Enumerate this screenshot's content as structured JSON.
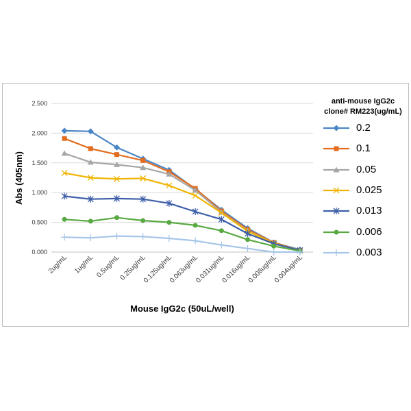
{
  "chart_data": {
    "type": "line",
    "categories": [
      "2ug/mL",
      "1ug/mL",
      "0.5ug/mL",
      "0.25ug/mL",
      "0.125ug/mL",
      "0.063ug/mL",
      "0.031ug/mL",
      "0.016ug/mL",
      "0.008ug/mL",
      "0.004ug/mL"
    ],
    "series": [
      {
        "name": "0.2",
        "color": "#4a86c6",
        "marker": "diamond",
        "values": [
          2.04,
          2.03,
          1.76,
          1.57,
          1.38,
          1.06,
          0.71,
          0.4,
          0.16,
          0.04
        ]
      },
      {
        "name": "0.1",
        "color": "#e26d1f",
        "marker": "square",
        "values": [
          1.91,
          1.74,
          1.64,
          1.54,
          1.35,
          1.07,
          0.69,
          0.38,
          0.16,
          0.03
        ]
      },
      {
        "name": "0.05",
        "color": "#a6a6a6",
        "marker": "triangle",
        "values": [
          1.66,
          1.51,
          1.47,
          1.42,
          1.31,
          1.04,
          0.67,
          0.36,
          0.15,
          0.03
        ]
      },
      {
        "name": "0.025",
        "color": "#f0b400",
        "marker": "x",
        "values": [
          1.33,
          1.25,
          1.23,
          1.24,
          1.12,
          0.95,
          0.66,
          0.35,
          0.15,
          0.03
        ]
      },
      {
        "name": "0.013",
        "color": "#3c5ea8",
        "marker": "star",
        "values": [
          0.94,
          0.89,
          0.9,
          0.89,
          0.82,
          0.68,
          0.55,
          0.31,
          0.14,
          0.03
        ]
      },
      {
        "name": "0.006",
        "color": "#58a942",
        "marker": "circle",
        "values": [
          0.55,
          0.52,
          0.58,
          0.53,
          0.5,
          0.45,
          0.36,
          0.21,
          0.1,
          0.02
        ]
      },
      {
        "name": "0.003",
        "color": "#a6c6e8",
        "marker": "plus",
        "values": [
          0.25,
          0.24,
          0.27,
          0.26,
          0.23,
          0.19,
          0.12,
          0.06,
          0.0,
          0.0
        ]
      }
    ],
    "xlabel": "Mouse IgG2c (50uL/well)",
    "ylabel": "Abs (405nm)",
    "ylim": [
      0,
      2.5
    ],
    "yticks": [
      "0.000",
      "0.500",
      "1.000",
      "1.500",
      "2.000",
      "2.500"
    ],
    "ytick_values": [
      0,
      0.5,
      1.0,
      1.5,
      2.0,
      2.5
    ],
    "grid": "horizontal",
    "legend_position": "right",
    "legend_title_line1": "anti-mouse IgG2c",
    "legend_title_line2": "clone# RM223(ug/mL)"
  }
}
